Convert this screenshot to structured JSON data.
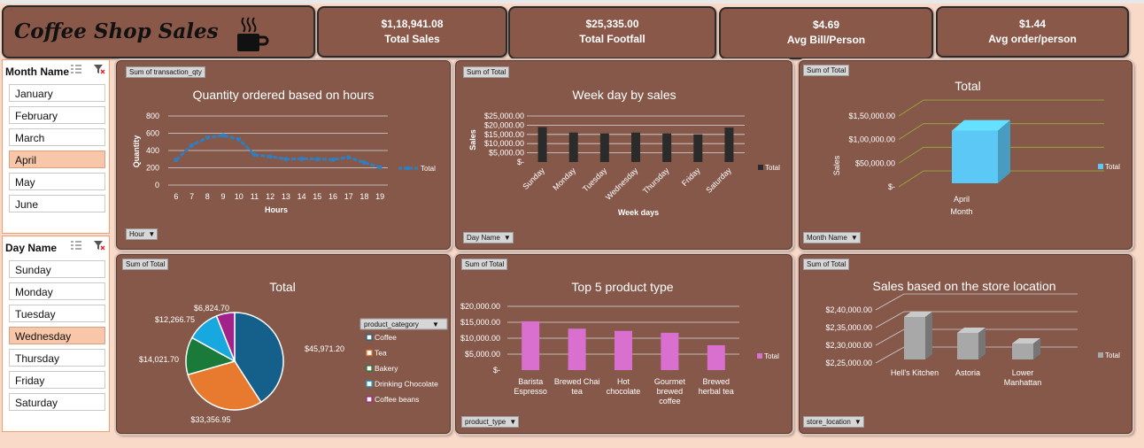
{
  "dashboard": {
    "title": "Coffee Shop Sales",
    "kpis": [
      {
        "value": "$1,18,941.08",
        "label": "Total Sales"
      },
      {
        "value": "$25,335.00",
        "label": "Total Footfall"
      },
      {
        "value": "$4.69",
        "label": "Avg Bill/Person"
      },
      {
        "value": "$1.44",
        "label": "Avg order/person"
      }
    ]
  },
  "slicers": {
    "month": {
      "header": "Month Name",
      "items": [
        "January",
        "February",
        "March",
        "April",
        "May",
        "June"
      ],
      "selected": "April"
    },
    "day": {
      "header": "Day Name",
      "items": [
        "Sunday",
        "Monday",
        "Tuesday",
        "Wednesday",
        "Thursday",
        "Friday",
        "Saturday"
      ],
      "selected": "Wednesday"
    }
  },
  "panels": {
    "hours": {
      "value_button": "Sum of transaction_qty",
      "axis_button": "Hour"
    },
    "weekday": {
      "value_button": "Sum of Total",
      "axis_button": "Day Name"
    },
    "month": {
      "value_button": "Sum of Total",
      "axis_button": "Month Name"
    },
    "pie": {
      "value_button": "Sum of Total",
      "legend_button": "product_category"
    },
    "top5": {
      "value_button": "Sum of Total",
      "axis_button": "product_type"
    },
    "store": {
      "value_button": "Sum of Total",
      "axis_button": "store_location"
    }
  },
  "chart_data": [
    {
      "id": "hours",
      "type": "line",
      "title": "Quantity ordered based on hours",
      "xlabel": "Hours",
      "ylabel": "Quantity",
      "x": [
        6,
        7,
        8,
        9,
        10,
        11,
        12,
        13,
        14,
        15,
        16,
        17,
        18,
        19
      ],
      "series": [
        {
          "name": "Total",
          "values": [
            290,
            460,
            550,
            575,
            530,
            350,
            330,
            300,
            305,
            300,
            295,
            320,
            260,
            205
          ]
        }
      ],
      "ylim": [
        0,
        800
      ],
      "yticks": [
        "0",
        "200",
        "400",
        "600",
        "800"
      ],
      "legend": "right",
      "color": "#2e7fc2"
    },
    {
      "id": "weekday",
      "type": "bar",
      "title": "Week day by sales",
      "xlabel": "Week days",
      "ylabel": "Sales",
      "categories": [
        "Sunday",
        "Monday",
        "Tuesday",
        "Wednesday",
        "Thursday",
        "Friday",
        "Saturday"
      ],
      "series": [
        {
          "name": "Total",
          "values": [
            19000,
            16000,
            15500,
            16000,
            15500,
            15000,
            18700
          ]
        }
      ],
      "ylim": [
        0,
        25000
      ],
      "yticks": [
        "$-",
        "$5,000.00",
        "$10,000.00",
        "$15,000.00",
        "$20,000.00",
        "$25,000.00"
      ],
      "legend": "right",
      "color": "#2b2b2b"
    },
    {
      "id": "month",
      "type": "bar",
      "title": "Total",
      "xlabel": "Month",
      "ylabel": "Sales",
      "categories": [
        "April"
      ],
      "series": [
        {
          "name": "Total",
          "values": [
            118941.08
          ]
        }
      ],
      "ylim": [
        0,
        150000
      ],
      "yticks": [
        "$-",
        "$50,000.00",
        "$1,00,000.00",
        "$1,50,000.00"
      ],
      "legend": "right",
      "color": "#5bc8f5"
    },
    {
      "id": "pie",
      "type": "pie",
      "title": "Total",
      "categories": [
        "Coffee",
        "Tea",
        "Bakery",
        "Drinking Chocolate",
        "Coffee beans"
      ],
      "values": [
        45971.2,
        33356.95,
        14021.7,
        12266.75,
        6824.7
      ],
      "data_labels": [
        "$45,971.20",
        "$33,356.95",
        "$14,021.70",
        "$12,266.75",
        "$6,824.70"
      ],
      "colors": [
        "#15608a",
        "#e87a30",
        "#1a7a3a",
        "#18a8e0",
        "#a0228a"
      ],
      "legend": "right"
    },
    {
      "id": "top5",
      "type": "bar",
      "title": "Top 5 product type",
      "categories": [
        "Barista Espresso",
        "Brewed Chai tea",
        "Hot chocolate",
        "Gourmet brewed coffee",
        "Brewed herbal tea"
      ],
      "category_lines": [
        [
          "Barista",
          "Espresso"
        ],
        [
          "Brewed Chai",
          "tea"
        ],
        [
          "Hot",
          "chocolate"
        ],
        [
          "Gourmet",
          "brewed",
          "coffee"
        ],
        [
          "Brewed",
          "herbal tea"
        ]
      ],
      "series": [
        {
          "name": "Total",
          "values": [
            15300,
            13000,
            12300,
            11700,
            7800
          ]
        }
      ],
      "ylim": [
        0,
        20000
      ],
      "yticks": [
        "$-",
        "$5,000.00",
        "$10,000.00",
        "$15,000.00",
        "$20,000.00"
      ],
      "legend": "right",
      "color": "#d970d0"
    },
    {
      "id": "store",
      "type": "bar",
      "title": "Sales based on the store location",
      "categories": [
        "Hell's Kitchen",
        "Astoria",
        "Lower Manhattan"
      ],
      "category_lines": [
        [
          "Hell's Kitchen"
        ],
        [
          "Astoria"
        ],
        [
          "Lower",
          "Manhattan"
        ]
      ],
      "series": [
        {
          "name": "Total",
          "values": [
            236500,
            232000,
            229000
          ]
        }
      ],
      "ylim": [
        225000,
        240000
      ],
      "yticks": [
        "$2,25,000.00",
        "$2,30,000.00",
        "$2,35,000.00",
        "$2,40,000.00"
      ],
      "legend": "right",
      "color": "#a8a8a8"
    }
  ]
}
